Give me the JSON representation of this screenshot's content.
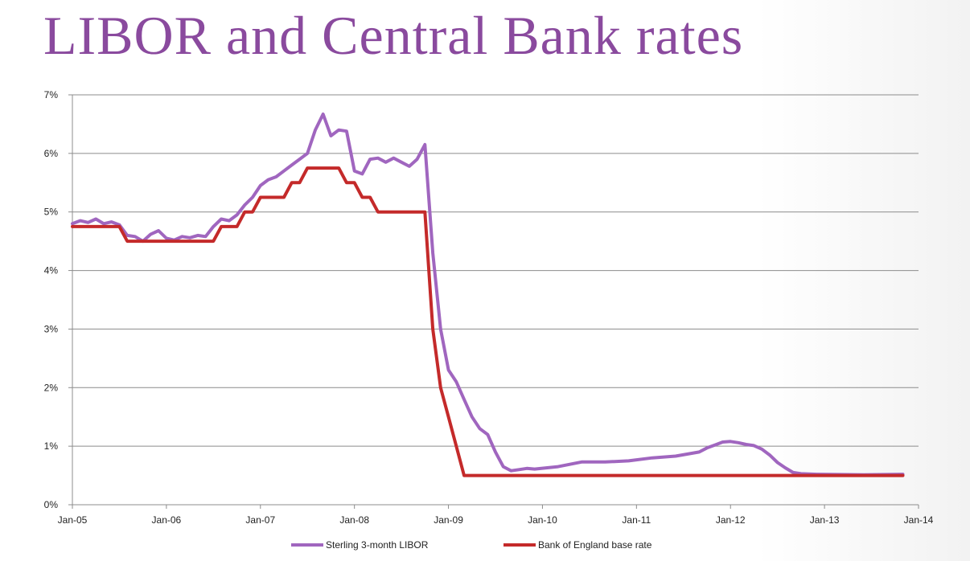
{
  "slide": {
    "title": "LIBOR and Central Bank rates"
  },
  "chart_data": {
    "type": "line",
    "title": "",
    "xlabel": "",
    "ylabel": "",
    "x_axis": {
      "type": "date",
      "min": "2005-01",
      "max": "2014-01",
      "tick_labels": [
        "Jan-05",
        "Jan-06",
        "Jan-07",
        "Jan-08",
        "Jan-09",
        "Jan-10",
        "Jan-11",
        "Jan-12",
        "Jan-13",
        "Jan-14"
      ]
    },
    "y_axis": {
      "min": 0,
      "max": 7,
      "step": 1,
      "unit": "%",
      "tick_labels": [
        "0%",
        "1%",
        "2%",
        "3%",
        "4%",
        "5%",
        "6%",
        "7%"
      ]
    },
    "grid": {
      "horizontal": true,
      "vertical": false
    },
    "legend": {
      "position": "bottom"
    },
    "series": [
      {
        "name": "Sterling 3-month LIBOR",
        "color": "#a066bf",
        "points": [
          [
            "2005-01",
            4.8
          ],
          [
            "2005-02",
            4.85
          ],
          [
            "2005-03",
            4.82
          ],
          [
            "2005-04",
            4.88
          ],
          [
            "2005-05",
            4.8
          ],
          [
            "2005-06",
            4.83
          ],
          [
            "2005-07",
            4.78
          ],
          [
            "2005-08",
            4.6
          ],
          [
            "2005-09",
            4.58
          ],
          [
            "2005-10",
            4.5
          ],
          [
            "2005-11",
            4.62
          ],
          [
            "2005-12",
            4.68
          ],
          [
            "2006-01",
            4.55
          ],
          [
            "2006-02",
            4.52
          ],
          [
            "2006-03",
            4.58
          ],
          [
            "2006-04",
            4.56
          ],
          [
            "2006-05",
            4.6
          ],
          [
            "2006-06",
            4.58
          ],
          [
            "2006-07",
            4.75
          ],
          [
            "2006-08",
            4.88
          ],
          [
            "2006-09",
            4.85
          ],
          [
            "2006-10",
            4.95
          ],
          [
            "2006-11",
            5.12
          ],
          [
            "2006-12",
            5.25
          ],
          [
            "2007-01",
            5.45
          ],
          [
            "2007-02",
            5.55
          ],
          [
            "2007-03",
            5.6
          ],
          [
            "2007-04",
            5.7
          ],
          [
            "2007-05",
            5.8
          ],
          [
            "2007-06",
            5.9
          ],
          [
            "2007-07",
            6.0
          ],
          [
            "2007-08",
            6.4
          ],
          [
            "2007-09",
            6.67
          ],
          [
            "2007-10",
            6.3
          ],
          [
            "2007-11",
            6.4
          ],
          [
            "2007-12",
            6.38
          ],
          [
            "2008-01",
            5.7
          ],
          [
            "2008-02",
            5.65
          ],
          [
            "2008-03",
            5.9
          ],
          [
            "2008-04",
            5.92
          ],
          [
            "2008-05",
            5.85
          ],
          [
            "2008-06",
            5.92
          ],
          [
            "2008-07",
            5.85
          ],
          [
            "2008-08",
            5.78
          ],
          [
            "2008-09",
            5.9
          ],
          [
            "2008-10",
            6.15
          ],
          [
            "2008-11",
            4.3
          ],
          [
            "2008-12",
            3.0
          ],
          [
            "2009-01",
            2.3
          ],
          [
            "2009-02",
            2.1
          ],
          [
            "2009-03",
            1.8
          ],
          [
            "2009-04",
            1.5
          ],
          [
            "2009-05",
            1.3
          ],
          [
            "2009-06",
            1.2
          ],
          [
            "2009-07",
            0.9
          ],
          [
            "2009-08",
            0.65
          ],
          [
            "2009-09",
            0.58
          ],
          [
            "2009-10",
            0.6
          ],
          [
            "2009-11",
            0.62
          ],
          [
            "2009-12",
            0.61
          ],
          [
            "2010-03",
            0.65
          ],
          [
            "2010-06",
            0.73
          ],
          [
            "2010-09",
            0.73
          ],
          [
            "2010-12",
            0.75
          ],
          [
            "2011-03",
            0.8
          ],
          [
            "2011-06",
            0.83
          ],
          [
            "2011-09",
            0.9
          ],
          [
            "2011-10",
            0.97
          ],
          [
            "2011-11",
            1.02
          ],
          [
            "2011-12",
            1.07
          ],
          [
            "2012-01",
            1.08
          ],
          [
            "2012-02",
            1.06
          ],
          [
            "2012-03",
            1.03
          ],
          [
            "2012-04",
            1.01
          ],
          [
            "2012-05",
            0.95
          ],
          [
            "2012-06",
            0.85
          ],
          [
            "2012-07",
            0.72
          ],
          [
            "2012-08",
            0.63
          ],
          [
            "2012-09",
            0.55
          ],
          [
            "2012-10",
            0.53
          ],
          [
            "2012-12",
            0.52
          ],
          [
            "2013-06",
            0.51
          ],
          [
            "2013-11",
            0.52
          ]
        ]
      },
      {
        "name": "Bank of England base rate",
        "color": "#c42a2a",
        "points": [
          [
            "2005-01",
            4.75
          ],
          [
            "2005-07",
            4.75
          ],
          [
            "2005-08",
            4.5
          ],
          [
            "2006-07",
            4.5
          ],
          [
            "2006-08",
            4.75
          ],
          [
            "2006-10",
            4.75
          ],
          [
            "2006-11",
            5.0
          ],
          [
            "2006-12",
            5.0
          ],
          [
            "2007-01",
            5.25
          ],
          [
            "2007-04",
            5.25
          ],
          [
            "2007-05",
            5.5
          ],
          [
            "2007-06",
            5.5
          ],
          [
            "2007-07",
            5.75
          ],
          [
            "2007-11",
            5.75
          ],
          [
            "2007-12",
            5.5
          ],
          [
            "2008-01",
            5.5
          ],
          [
            "2008-02",
            5.25
          ],
          [
            "2008-03",
            5.25
          ],
          [
            "2008-04",
            5.0
          ],
          [
            "2008-09",
            5.0
          ],
          [
            "2008-10",
            5.0
          ],
          [
            "2008-11",
            3.0
          ],
          [
            "2008-12",
            2.0
          ],
          [
            "2009-01",
            1.5
          ],
          [
            "2009-02",
            1.0
          ],
          [
            "2009-03",
            0.5
          ],
          [
            "2013-11",
            0.5
          ]
        ]
      }
    ]
  }
}
